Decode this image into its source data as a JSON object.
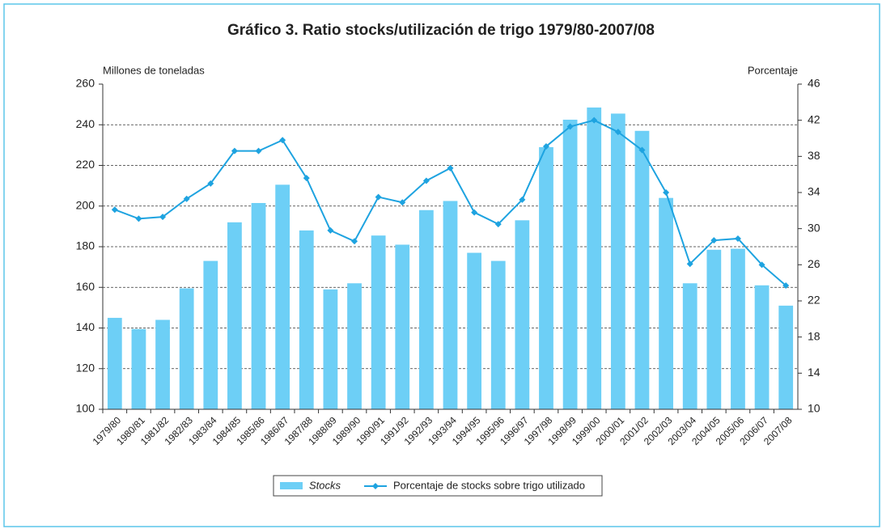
{
  "chart_data": {
    "type": "bar_line",
    "title": "Gráfico 3. Ratio stocks/utilización de trigo 1979/80-2007/08",
    "ylabel": "Millones de toneladas",
    "y2label": "Porcentaje",
    "categories": [
      "1979/80",
      "1980/81",
      "1981/82",
      "1982/83",
      "1983/84",
      "1984/85",
      "1985/86",
      "1986/87",
      "1987/88",
      "1988/89",
      "1989/90",
      "1990/91",
      "1991/92",
      "1992/93",
      "1993/94",
      "1994/95",
      "1995/96",
      "1996/97",
      "1997/98",
      "1998/99",
      "1999/00",
      "2000/01",
      "2001/02",
      "2002/03",
      "2003/04",
      "2004/05",
      "2005/06",
      "2006/07",
      "2007/08"
    ],
    "series": [
      {
        "name": "Stocks",
        "color": "#6dcff6",
        "type": "bar",
        "values": [
          145,
          139.5,
          144,
          159.5,
          173,
          192,
          201.5,
          210.5,
          188,
          159,
          162,
          185.5,
          181,
          198,
          202.5,
          177,
          173,
          193,
          229,
          242.5,
          248.5,
          245.5,
          237,
          204,
          162,
          178.5,
          179,
          161,
          151
        ]
      },
      {
        "name": "Porcentaje de stocks sobre trigo utilizado",
        "color": "#1ea3e0",
        "type": "line",
        "axis": "y2",
        "values": [
          32.1,
          31.1,
          31.3,
          33.3,
          35.0,
          38.6,
          38.6,
          39.8,
          35.6,
          29.8,
          28.6,
          33.5,
          32.9,
          35.3,
          36.7,
          31.8,
          30.5,
          33.2,
          39.1,
          41.3,
          42.0,
          40.7,
          38.7,
          34.0,
          26.1,
          28.7,
          28.9,
          26.0,
          23.7
        ]
      }
    ],
    "ylim": [
      100,
      260
    ],
    "yticks": [
      100,
      120,
      140,
      160,
      180,
      200,
      220,
      240,
      260
    ],
    "y2lim": [
      10,
      46
    ],
    "y2ticks": [
      10,
      14,
      18,
      22,
      26,
      30,
      34,
      38,
      42,
      46
    ],
    "grid": true
  }
}
